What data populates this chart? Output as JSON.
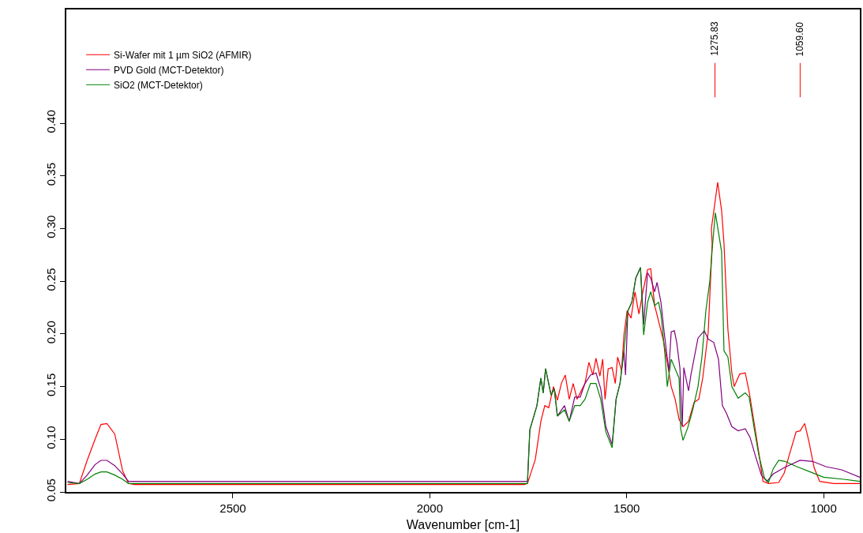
{
  "chart_data": {
    "type": "line",
    "xlabel": "Wavenumber [cm-1]",
    "xlim": [
      2923,
      908
    ],
    "xticks": [
      2500,
      2000,
      1500,
      1000
    ],
    "ylim": [
      0.05,
      0.508
    ],
    "yticks": [
      {
        "value": 0.05,
        "label": "0.05"
      },
      {
        "value": 0.1,
        "label": "0.10"
      },
      {
        "value": 0.15,
        "label": "0.15"
      },
      {
        "value": 0.2,
        "label": "0.20"
      },
      {
        "value": 0.25,
        "label": "0.25"
      },
      {
        "value": 0.3,
        "label": "0.30"
      },
      {
        "value": 0.35,
        "label": "0.35"
      },
      {
        "value": 0.4,
        "label": "0.40"
      }
    ],
    "legend": "top left",
    "marker": "none",
    "line_style": "solid",
    "ref_lines": [
      {
        "axis": "x",
        "value": 1275.83,
        "label": "1275.83",
        "color": "#ff0000"
      },
      {
        "axis": "x",
        "value": 1059.6,
        "label": "1059.60",
        "color": "#ff0000"
      }
    ],
    "series": [
      {
        "name": "Si-Wafer mit 1 µm SiO2 (AFMIR)",
        "color": "#ff0000",
        "x": [
          2920,
          2890,
          2870,
          2850,
          2835,
          2820,
          2800,
          2780,
          2765,
          2750,
          1760,
          1752,
          1732,
          1718,
          1708,
          1698,
          1686,
          1676,
          1666,
          1656,
          1646,
          1636,
          1626,
          1606,
          1596,
          1586,
          1578,
          1568,
          1561,
          1555,
          1547,
          1537,
          1529,
          1523,
          1513,
          1507,
          1499,
          1489,
          1479,
          1469,
          1459,
          1447,
          1439,
          1429,
          1417,
          1407,
          1397,
          1387,
          1377,
          1367,
          1357,
          1343,
          1329,
          1317,
          1307,
          1293,
          1283,
          1285,
          1275.83,
          1269,
          1259,
          1253,
          1243,
          1233,
          1227,
          1213,
          1199,
          1189,
          1177,
          1164,
          1154,
          1140,
          1114,
          1100,
          1088,
          1070,
          1059.6,
          1048,
          1038,
          1024,
          1010,
          974,
          908
        ],
        "values": [
          0.057,
          0.058,
          0.08,
          0.1,
          0.114,
          0.115,
          0.105,
          0.07,
          0.058,
          0.057,
          0.057,
          0.058,
          0.081,
          0.117,
          0.132,
          0.13,
          0.15,
          0.137,
          0.153,
          0.161,
          0.138,
          0.153,
          0.138,
          0.153,
          0.173,
          0.161,
          0.177,
          0.16,
          0.176,
          0.138,
          0.167,
          0.168,
          0.153,
          0.178,
          0.165,
          0.199,
          0.222,
          0.215,
          0.24,
          0.219,
          0.24,
          0.261,
          0.262,
          0.227,
          0.209,
          0.194,
          0.173,
          0.15,
          0.138,
          0.119,
          0.112,
          0.117,
          0.135,
          0.138,
          0.158,
          0.202,
          0.286,
          0.3,
          0.325,
          0.344,
          0.317,
          0.286,
          0.204,
          0.163,
          0.15,
          0.162,
          0.163,
          0.145,
          0.117,
          0.086,
          0.06,
          0.058,
          0.059,
          0.068,
          0.084,
          0.107,
          0.108,
          0.115,
          0.099,
          0.073,
          0.06,
          0.058,
          0.058
        ]
      },
      {
        "name": "PVD Gold (MCT-Detektor)",
        "color": "#800080",
        "x": [
          2920,
          2890,
          2870,
          2850,
          2835,
          2820,
          2800,
          2780,
          2765,
          2750,
          1760,
          1752,
          1746,
          1728,
          1718,
          1712,
          1706,
          1692,
          1684,
          1676,
          1658,
          1646,
          1632,
          1618,
          1606,
          1592,
          1578,
          1566,
          1553,
          1537,
          1527,
          1517,
          1507,
          1503,
          1497,
          1487,
          1477,
          1465,
          1457,
          1447,
          1439,
          1429,
          1423,
          1413,
          1405,
          1393,
          1387,
          1379,
          1373,
          1365,
          1359,
          1355,
          1343,
          1337,
          1319,
          1303,
          1293,
          1279,
          1267,
          1257,
          1247,
          1233,
          1217,
          1199,
          1187,
          1173,
          1158,
          1144,
          1128,
          1100,
          1060,
          1028,
          994,
          954,
          908
        ],
        "values": [
          0.06,
          0.058,
          0.066,
          0.076,
          0.08,
          0.08,
          0.075,
          0.067,
          0.06,
          0.06,
          0.06,
          0.06,
          0.109,
          0.132,
          0.158,
          0.144,
          0.167,
          0.142,
          0.148,
          0.122,
          0.132,
          0.117,
          0.14,
          0.14,
          0.153,
          0.161,
          0.163,
          0.148,
          0.112,
          0.095,
          0.138,
          0.153,
          0.184,
          0.161,
          0.222,
          0.23,
          0.253,
          0.263,
          0.209,
          0.258,
          0.253,
          0.24,
          0.249,
          0.23,
          0.202,
          0.165,
          0.202,
          0.203,
          0.192,
          0.168,
          0.112,
          0.168,
          0.146,
          0.161,
          0.196,
          0.203,
          0.195,
          0.192,
          0.176,
          0.132,
          0.125,
          0.112,
          0.108,
          0.11,
          0.102,
          0.084,
          0.066,
          0.06,
          0.067,
          0.073,
          0.08,
          0.079,
          0.074,
          0.071,
          0.064
        ]
      },
      {
        "name": "SiO2 (MCT-Detektor)",
        "color": "#008000",
        "x": [
          2920,
          2890,
          2870,
          2850,
          2835,
          2820,
          2800,
          2780,
          2765,
          2750,
          1760,
          1752,
          1746,
          1728,
          1718,
          1712,
          1706,
          1692,
          1684,
          1676,
          1658,
          1646,
          1632,
          1618,
          1606,
          1592,
          1578,
          1566,
          1553,
          1537,
          1527,
          1517,
          1507,
          1497,
          1487,
          1477,
          1465,
          1457,
          1447,
          1439,
          1429,
          1419,
          1413,
          1403,
          1397,
          1387,
          1377,
          1367,
          1363,
          1357,
          1345,
          1333,
          1319,
          1309,
          1299,
          1289,
          1283,
          1275,
          1259,
          1253,
          1243,
          1233,
          1217,
          1199,
          1189,
          1177,
          1164,
          1150,
          1140,
          1128,
          1114,
          1098,
          1068,
          1034,
          1000,
          948,
          908
        ],
        "values": [
          0.059,
          0.058,
          0.062,
          0.067,
          0.069,
          0.069,
          0.066,
          0.062,
          0.058,
          0.058,
          0.058,
          0.058,
          0.109,
          0.132,
          0.158,
          0.144,
          0.167,
          0.142,
          0.148,
          0.122,
          0.128,
          0.117,
          0.132,
          0.132,
          0.138,
          0.153,
          0.153,
          0.138,
          0.107,
          0.092,
          0.138,
          0.153,
          0.184,
          0.222,
          0.23,
          0.253,
          0.263,
          0.199,
          0.23,
          0.24,
          0.227,
          0.23,
          0.219,
          0.181,
          0.15,
          0.176,
          0.167,
          0.158,
          0.11,
          0.099,
          0.111,
          0.127,
          0.15,
          0.178,
          0.222,
          0.25,
          0.28,
          0.315,
          0.278,
          0.184,
          0.178,
          0.15,
          0.139,
          0.144,
          0.14,
          0.112,
          0.084,
          0.063,
          0.059,
          0.072,
          0.08,
          0.079,
          0.074,
          0.069,
          0.064,
          0.062,
          0.06
        ]
      }
    ]
  }
}
